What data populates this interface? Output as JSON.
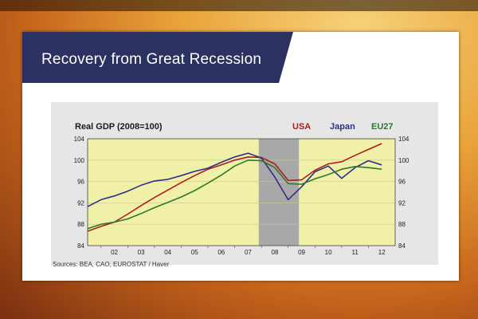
{
  "slide": {
    "title": "Recovery from Great Recession",
    "source": "Sources: BEA, CAO, EUROSTAT / Haver"
  },
  "chart_data": {
    "type": "line",
    "title": "Real GDP (2008=100)",
    "xlabel": "",
    "ylabel": "",
    "x_tick_labels": [
      "02",
      "03",
      "04",
      "05",
      "06",
      "07",
      "08",
      "09",
      "10",
      "11",
      "12"
    ],
    "y_tick_labels": [
      "84",
      "88",
      "92",
      "96",
      "100",
      "104"
    ],
    "y_ticks": [
      84,
      88,
      92,
      96,
      100,
      104
    ],
    "ylim": [
      84,
      104
    ],
    "xlim": [
      2001.5,
      2013.0
    ],
    "shaded_period": [
      2007.9,
      2009.4
    ],
    "grid": true,
    "legend": "top-right",
    "colors": {
      "plot_bg": "#f0f0a8",
      "shade": "#a8a8a8",
      "USA": "#b01c1c",
      "Japan": "#2d2f8a",
      "EU27": "#2c7a2c"
    },
    "series": [
      {
        "name": "USA",
        "x": [
          2001.5,
          2002.0,
          2002.5,
          2003.0,
          2003.5,
          2004.0,
          2004.5,
          2005.0,
          2005.5,
          2006.0,
          2006.5,
          2007.0,
          2007.5,
          2008.0,
          2008.5,
          2009.0,
          2009.5,
          2010.0,
          2010.5,
          2011.0,
          2011.5,
          2012.0,
          2012.5
        ],
        "values": [
          86.7,
          87.6,
          88.4,
          89.9,
          91.5,
          93.0,
          94.4,
          95.8,
          97.1,
          98.3,
          99.1,
          100.0,
          100.6,
          100.5,
          99.3,
          96.2,
          96.3,
          98.1,
          99.3,
          99.7,
          100.9,
          102.0,
          103.1
        ]
      },
      {
        "name": "Japan",
        "x": [
          2001.5,
          2002.0,
          2002.5,
          2003.0,
          2003.5,
          2004.0,
          2004.5,
          2005.0,
          2005.5,
          2006.0,
          2006.5,
          2007.0,
          2007.5,
          2008.0,
          2008.5,
          2009.0,
          2009.5,
          2010.0,
          2010.5,
          2011.0,
          2011.5,
          2012.0,
          2012.5
        ],
        "values": [
          91.3,
          92.6,
          93.3,
          94.2,
          95.3,
          96.1,
          96.4,
          97.1,
          97.9,
          98.5,
          99.6,
          100.6,
          101.3,
          100.4,
          96.8,
          92.6,
          95.0,
          97.8,
          98.9,
          96.6,
          98.6,
          99.9,
          99.1
        ]
      },
      {
        "name": "EU27",
        "x": [
          2001.5,
          2002.0,
          2002.5,
          2003.0,
          2003.5,
          2004.0,
          2004.5,
          2005.0,
          2005.5,
          2006.0,
          2006.5,
          2007.0,
          2007.5,
          2008.0,
          2008.5,
          2009.0,
          2009.5,
          2010.0,
          2010.5,
          2011.0,
          2011.5,
          2012.0,
          2012.5
        ],
        "values": [
          87.2,
          88.0,
          88.4,
          89.0,
          90.0,
          91.1,
          92.1,
          93.1,
          94.3,
          95.7,
          97.2,
          98.9,
          100.0,
          99.9,
          98.6,
          95.6,
          95.5,
          96.5,
          97.3,
          98.3,
          98.8,
          98.6,
          98.3
        ]
      }
    ]
  }
}
